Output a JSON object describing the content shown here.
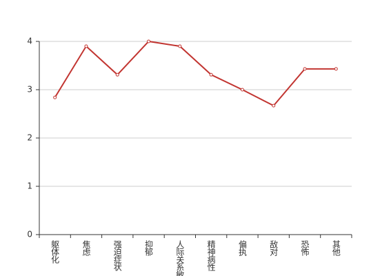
{
  "chart_data": {
    "type": "line",
    "categories": [
      "躯体化",
      "焦虑",
      "强迫症状",
      "抑郁",
      "人际关系敏感",
      "精神病性",
      "偏执",
      "敌对",
      "恐怖",
      "其他"
    ],
    "series": [
      {
        "color": "#c23531",
        "values": [
          2.84,
          3.9,
          3.31,
          4.0,
          3.9,
          3.31,
          3.0,
          2.67,
          3.43,
          3.43
        ]
      }
    ],
    "ylim": [
      0,
      4
    ],
    "yticks": [
      0,
      1,
      2,
      3,
      4
    ],
    "grid": true
  }
}
